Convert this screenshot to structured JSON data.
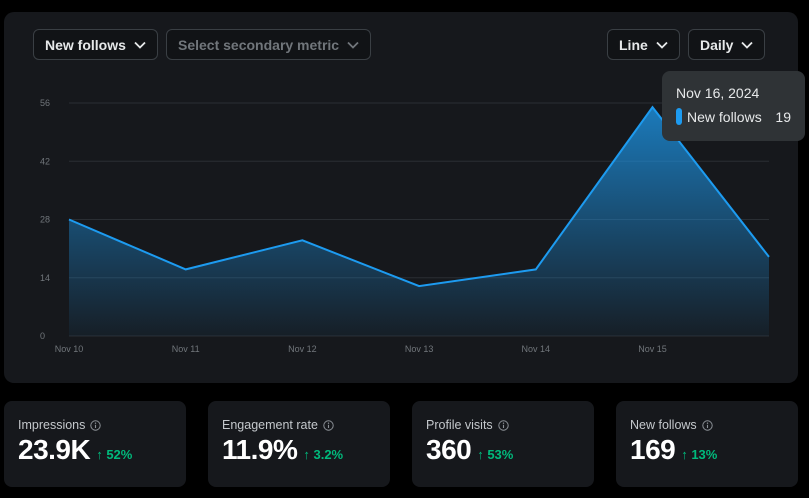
{
  "controls": {
    "primary_metric": "New follows",
    "secondary_metric_placeholder": "Select secondary metric",
    "chart_type": "Line",
    "interval": "Daily"
  },
  "chart_data": {
    "type": "area",
    "x": [
      "Nov 10",
      "Nov 11",
      "Nov 12",
      "Nov 13",
      "Nov 14",
      "Nov 15",
      "Nov 16"
    ],
    "series": [
      {
        "name": "New follows",
        "values": [
          28,
          16,
          23,
          12,
          16,
          55,
          19
        ]
      }
    ],
    "yticks": [
      "0",
      "14",
      "28",
      "42",
      "56"
    ],
    "ylim": [
      0,
      56
    ],
    "grid": true,
    "line_color": "#1d9bf0"
  },
  "tooltip": {
    "date": "Nov 16, 2024",
    "series_name": "New follows",
    "value": "19"
  },
  "stats": [
    {
      "label": "Impressions",
      "value": "23.9K",
      "change": "↑ 52%"
    },
    {
      "label": "Engagement rate",
      "value": "11.9%",
      "change": "↑ 3.2%"
    },
    {
      "label": "Profile visits",
      "value": "360",
      "change": "↑ 53%"
    },
    {
      "label": "New follows",
      "value": "169",
      "change": "↑ 13%"
    }
  ]
}
